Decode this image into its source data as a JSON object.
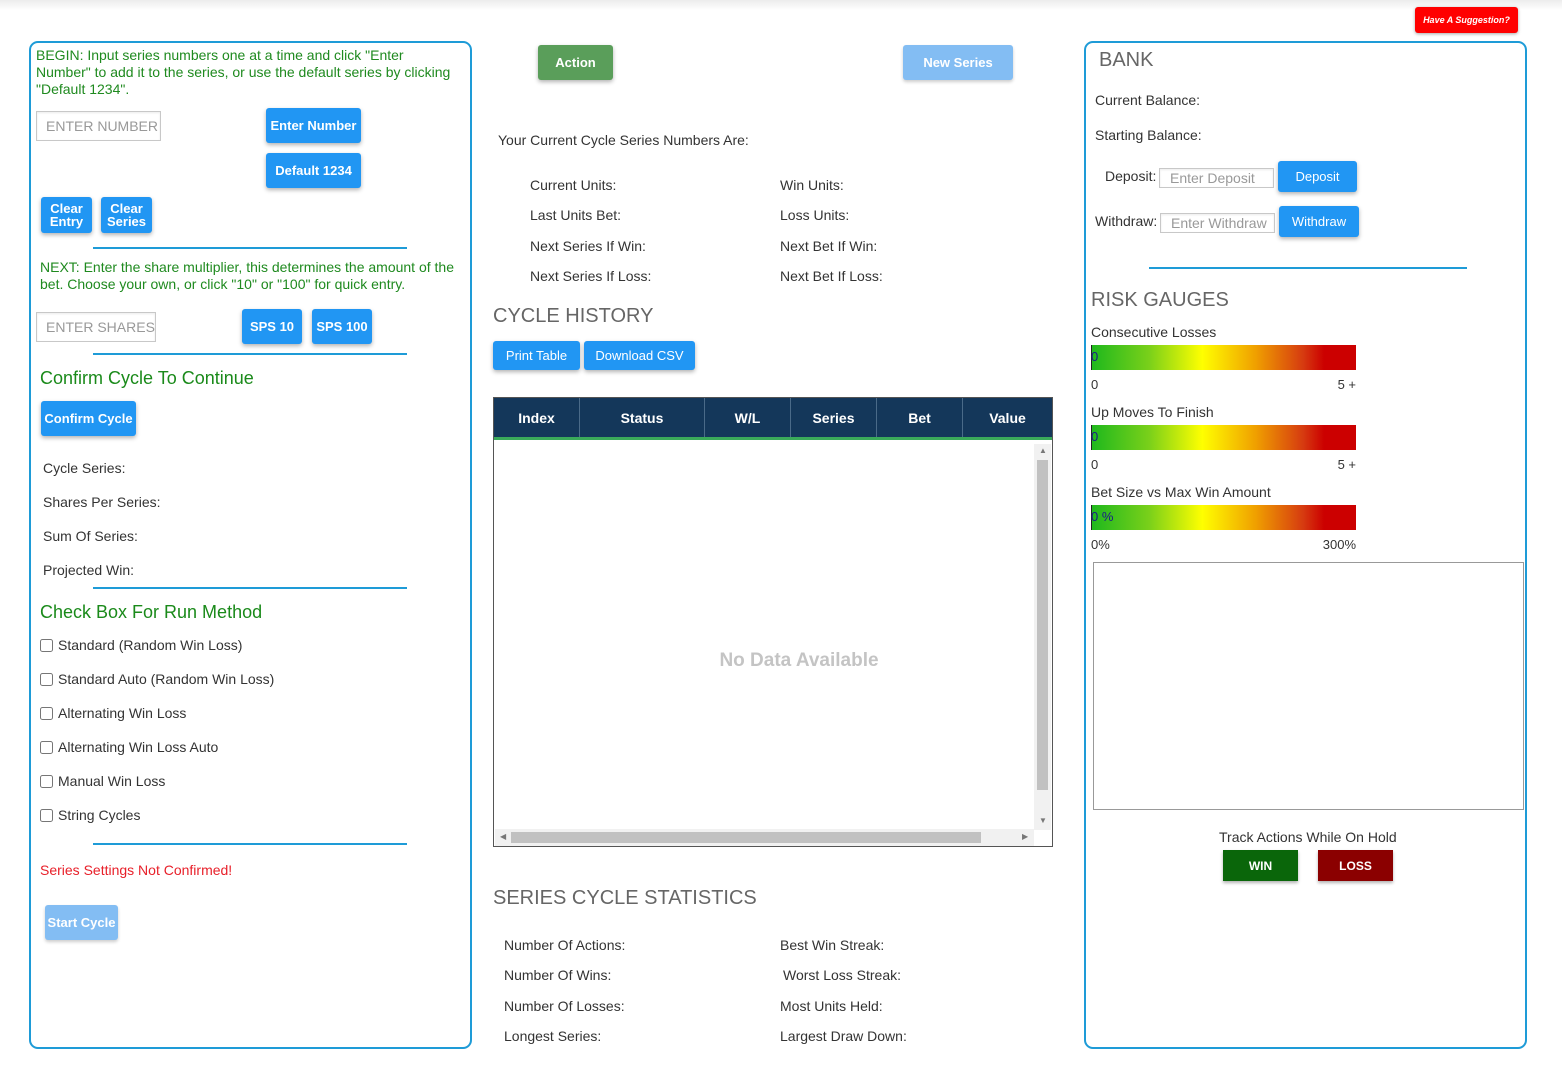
{
  "header": {
    "suggestion_label": "Have A Suggestion?"
  },
  "left": {
    "begin_text": "BEGIN: Input series numbers one at a time and click \"Enter Number\" to add it to the series, or use the default series by clicking \"Default 1234\".",
    "enter_number_placeholder": "ENTER NUMBER",
    "enter_number_label": "Enter Number",
    "default_label": "Default 1234",
    "clear_entry_label": "Clear Entry",
    "clear_series_label": "Clear Series",
    "next_text": "NEXT: Enter the share multiplier, this determines the amount of the bet. Choose your own, or click \"10\" or \"100\" for quick entry.",
    "enter_shares_placeholder": "ENTER SHARES",
    "sps10_label": "SPS 10",
    "sps100_label": "SPS 100",
    "confirm_heading": "Confirm Cycle To Continue",
    "confirm_button": "Confirm Cycle",
    "cycle_series_label": "Cycle Series:",
    "shares_per_series_label": "Shares Per Series:",
    "sum_of_series_label": "Sum Of Series:",
    "projected_win_label": "Projected Win:",
    "run_method_heading": "Check Box For Run Method",
    "run_methods": [
      "Standard (Random Win Loss)",
      "Standard Auto (Random Win Loss)",
      "Alternating Win Loss",
      "Alternating Win Loss Auto",
      "Manual Win Loss",
      "String Cycles"
    ],
    "status_text": "Series Settings Not Confirmed!",
    "start_cycle_label": "Start Cycle"
  },
  "center": {
    "action_label": "Action",
    "new_series_label": "New Series",
    "current_series_text": "Your Current Cycle Series Numbers Are:",
    "units": {
      "current_units": "Current Units:",
      "last_units_bet": "Last Units Bet:",
      "next_series_if_win": "Next Series If Win:",
      "next_series_if_loss": "Next Series If Loss:",
      "win_units": "Win Units:",
      "loss_units": "Loss Units:",
      "next_bet_if_win": "Next Bet If Win:",
      "next_bet_if_loss": "Next Bet If Loss:"
    },
    "history_heading": "CYCLE HISTORY",
    "print_table_label": "Print Table",
    "download_csv_label": "Download CSV",
    "table_columns": [
      "Index",
      "Status",
      "W/L",
      "Series",
      "Bet",
      "Value"
    ],
    "no_data_text": "No Data Available",
    "stats_heading": "SERIES CYCLE STATISTICS",
    "stats": {
      "number_of_actions": "Number Of Actions:",
      "number_of_wins": "Number Of Wins:",
      "number_of_losses": "Number Of Losses:",
      "longest_series": "Longest Series:",
      "best_win_streak": "Best Win Streak:",
      "worst_loss_streak": "Worst Loss Streak:",
      "most_units_held": "Most Units Held:",
      "largest_draw_down": "Largest Draw Down:"
    }
  },
  "right": {
    "bank_heading": "BANK",
    "current_balance_label": "Current Balance:",
    "starting_balance_label": "Starting Balance:",
    "deposit_label": "Deposit:",
    "deposit_placeholder": "Enter Deposit",
    "deposit_button": "Deposit",
    "withdraw_label": "Withdraw:",
    "withdraw_placeholder": "Enter Withdraw",
    "withdraw_button": "Withdraw",
    "risk_heading": "RISK GAUGES",
    "gauges": [
      {
        "title": "Consecutive Losses",
        "value_text": "0",
        "min": "0",
        "max": "5 +",
        "level": 0
      },
      {
        "title": "Up Moves To Finish",
        "value_text": "0",
        "min": "0",
        "max": "5 +",
        "level": 0
      },
      {
        "title": "Bet Size vs Max Win Amount",
        "value_text": "0 %",
        "min": "0%",
        "max": "300%",
        "level": 0
      }
    ],
    "track_label": "Track Actions While On Hold",
    "win_label": "WIN",
    "loss_label": "LOSS"
  }
}
